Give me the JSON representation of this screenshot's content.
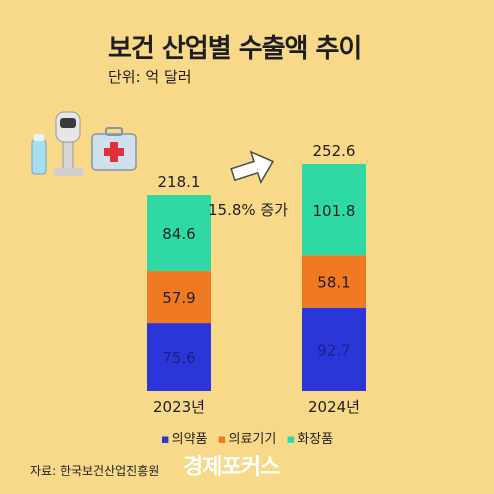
{
  "title": "보건 산업별 수출액 추이",
  "unit_label": "단위: 억 달러",
  "colors": {
    "background": "#f8d98a",
    "pharma": "#2b36d9",
    "devices": "#f07a22",
    "cosmetics": "#2fd9a6"
  },
  "chart_data": {
    "type": "bar",
    "stacked": true,
    "categories": [
      "2023년",
      "2024년"
    ],
    "series": [
      {
        "name": "의약품",
        "values": [
          75.6,
          92.7
        ]
      },
      {
        "name": "의료기기",
        "values": [
          57.9,
          58.1
        ]
      },
      {
        "name": "화장품",
        "values": [
          84.6,
          101.8
        ]
      }
    ],
    "totals": [
      218.1,
      252.6
    ],
    "annotation": "15.8% 증가",
    "legend_position": "bottom"
  },
  "legend": {
    "bullet": "▪",
    "items": [
      "의약품",
      "의료기기",
      "화장품"
    ]
  },
  "source": "자료: 한국보건산업진흥원",
  "logo_text": "경제포커스",
  "icons": [
    "cosmetic-tube-icon",
    "beauty-device-icon",
    "first-aid-kit-icon"
  ]
}
